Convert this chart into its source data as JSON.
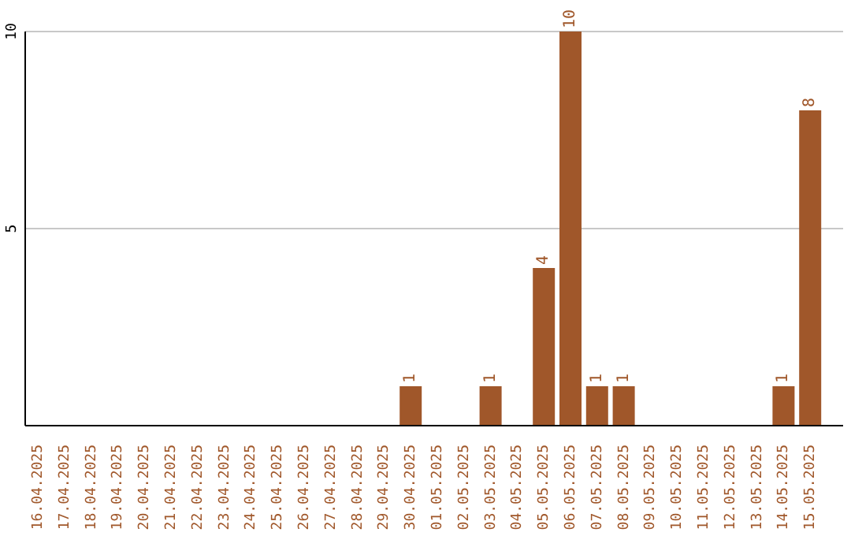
{
  "chart_data": {
    "type": "bar",
    "categories": [
      "16.04.2025",
      "17.04.2025",
      "18.04.2025",
      "19.04.2025",
      "20.04.2025",
      "21.04.2025",
      "22.04.2025",
      "23.04.2025",
      "24.04.2025",
      "25.04.2025",
      "26.04.2025",
      "27.04.2025",
      "28.04.2025",
      "29.04.2025",
      "30.04.2025",
      "01.05.2025",
      "02.05.2025",
      "03.05.2025",
      "04.05.2025",
      "05.05.2025",
      "06.05.2025",
      "07.05.2025",
      "08.05.2025",
      "09.05.2025",
      "10.05.2025",
      "11.05.2025",
      "12.05.2025",
      "13.05.2025",
      "14.05.2025",
      "15.05.2025"
    ],
    "values": [
      0,
      0,
      0,
      0,
      0,
      0,
      0,
      0,
      0,
      0,
      0,
      0,
      0,
      0,
      1,
      0,
      0,
      1,
      0,
      4,
      10,
      1,
      1,
      0,
      0,
      0,
      0,
      0,
      1,
      8
    ],
    "value_labels": [
      null,
      null,
      null,
      null,
      null,
      null,
      null,
      null,
      null,
      null,
      null,
      null,
      null,
      null,
      "1",
      null,
      null,
      "1",
      null,
      "4",
      "10",
      "1",
      "1",
      null,
      null,
      null,
      null,
      null,
      "1",
      "8"
    ],
    "color": "#a0572a",
    "ylim": [
      0,
      10
    ],
    "yticks": [
      5,
      10
    ],
    "grid": "y"
  }
}
